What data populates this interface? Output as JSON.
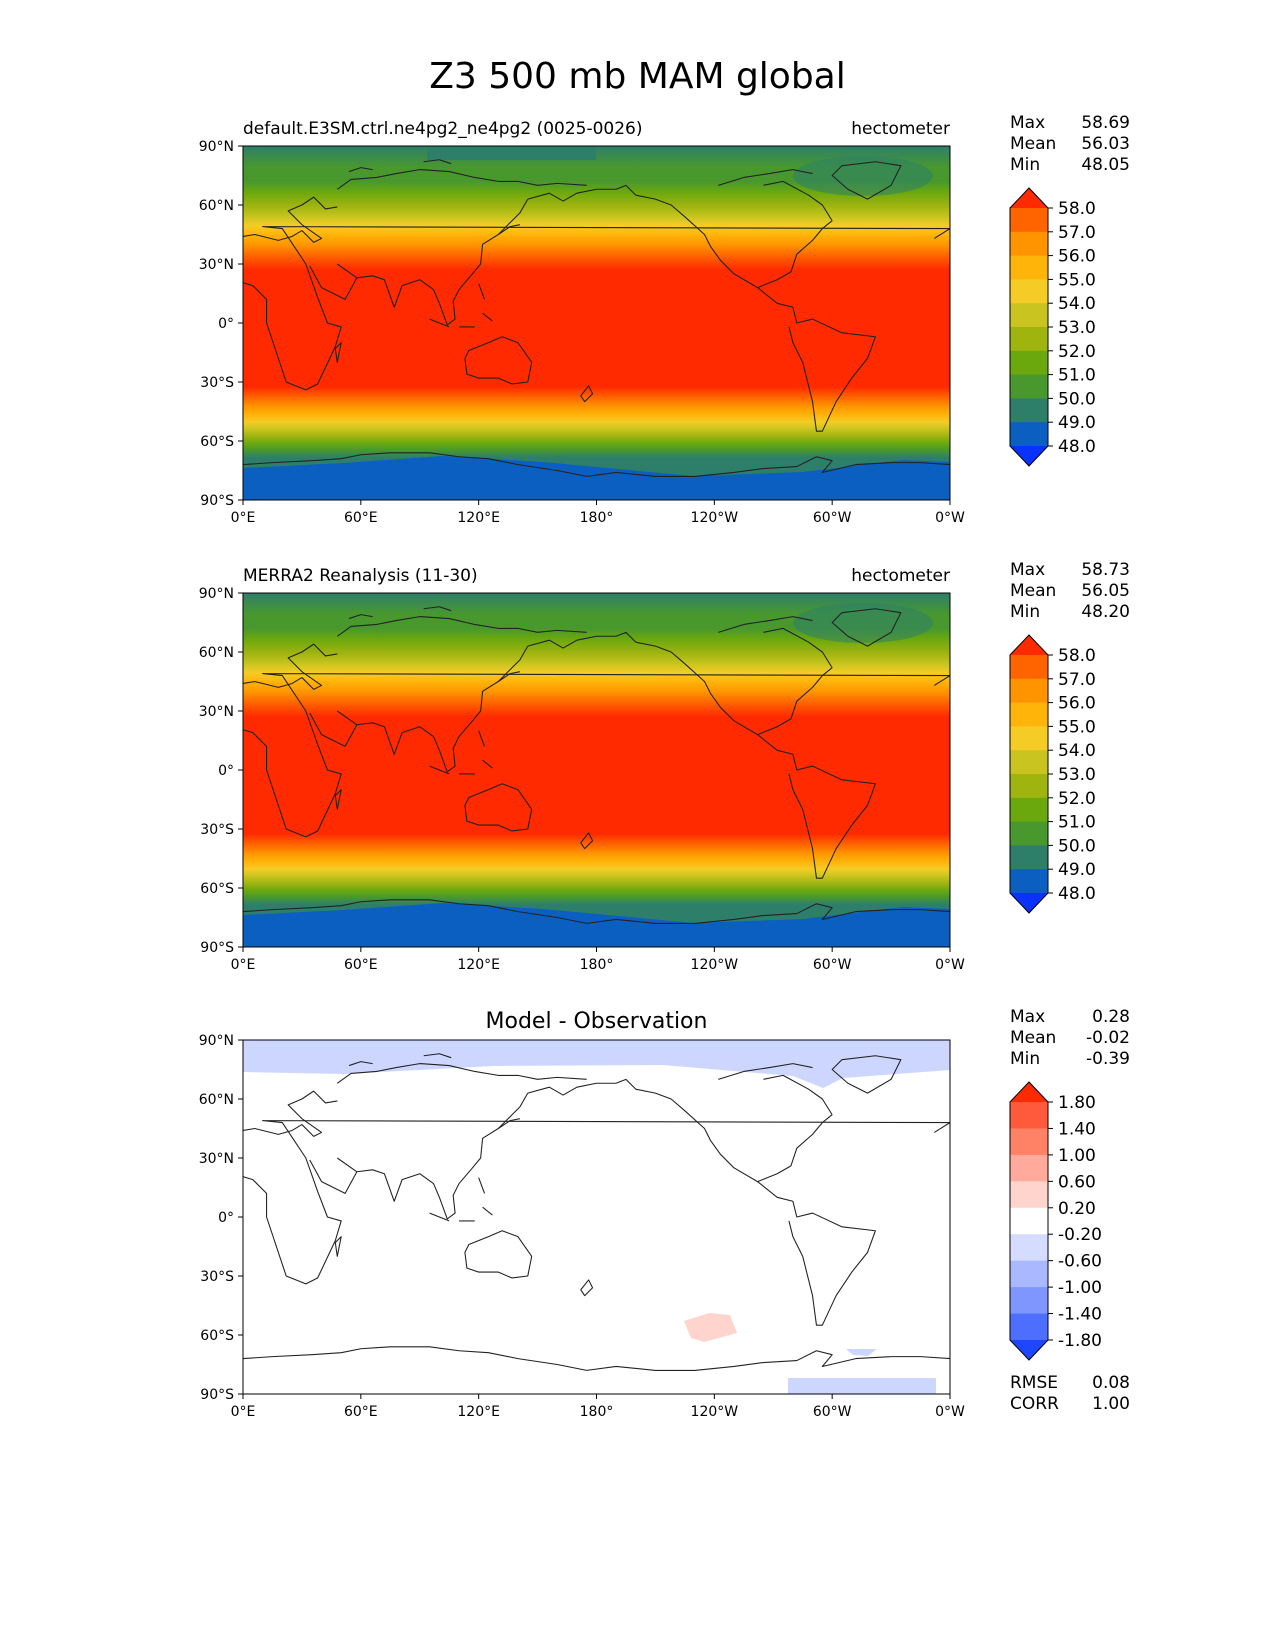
{
  "title": "Z3 500 mb MAM global",
  "axes": {
    "yticks": [
      "90°N",
      "60°N",
      "30°N",
      "0°",
      "30°S",
      "60°S",
      "90°S"
    ],
    "xticks": [
      "0°E",
      "60°E",
      "120°E",
      "180°",
      "120°W",
      "60°W",
      "0°W"
    ]
  },
  "panels": [
    {
      "id": "model",
      "left_title": "default.E3SM.ctrl.ne4pg2_ne4pg2 (0025-0026)",
      "right_title": "hectometer",
      "center_title": "",
      "stats": [
        {
          "label": "Max",
          "value": "58.69"
        },
        {
          "label": "Mean",
          "value": "56.03"
        },
        {
          "label": "Min",
          "value": "48.05"
        }
      ],
      "bottom_stats": [],
      "colorbar": {
        "ticks": [
          "58.0",
          "57.0",
          "56.0",
          "55.0",
          "54.0",
          "53.0",
          "52.0",
          "51.0",
          "50.0",
          "49.0",
          "48.0"
        ],
        "colors": [
          "#ff2a00",
          "#ff6400",
          "#ff9400",
          "#ffb40a",
          "#f5cc26",
          "#c9c41f",
          "#a0b410",
          "#6aa80e",
          "#48982e",
          "#2e7f6a",
          "#0b5fc0",
          "#0a32ff"
        ],
        "extend": "both"
      }
    },
    {
      "id": "obs",
      "left_title": "MERRA2 Reanalysis (11-30)",
      "right_title": "hectometer",
      "center_title": "",
      "stats": [
        {
          "label": "Max",
          "value": "58.73"
        },
        {
          "label": "Mean",
          "value": "56.05"
        },
        {
          "label": "Min",
          "value": "48.20"
        }
      ],
      "bottom_stats": [],
      "colorbar": {
        "ticks": [
          "58.0",
          "57.0",
          "56.0",
          "55.0",
          "54.0",
          "53.0",
          "52.0",
          "51.0",
          "50.0",
          "49.0",
          "48.0"
        ],
        "colors": [
          "#ff2a00",
          "#ff6400",
          "#ff9400",
          "#ffb40a",
          "#f5cc26",
          "#c9c41f",
          "#a0b410",
          "#6aa80e",
          "#48982e",
          "#2e7f6a",
          "#0b5fc0",
          "#0a32ff"
        ],
        "extend": "both"
      }
    },
    {
      "id": "diff",
      "left_title": "",
      "right_title": "",
      "center_title": "Model - Observation",
      "stats": [
        {
          "label": "Max",
          "value": "0.28"
        },
        {
          "label": "Mean",
          "value": "-0.02"
        },
        {
          "label": "Min",
          "value": "-0.39"
        }
      ],
      "bottom_stats": [
        {
          "label": "RMSE",
          "value": "0.08"
        },
        {
          "label": "CORR",
          "value": "1.00"
        }
      ],
      "colorbar": {
        "ticks": [
          "1.80",
          "1.40",
          "1.00",
          "0.60",
          "0.20",
          "-0.20",
          "-0.60",
          "-1.00",
          "-1.40",
          "-1.80"
        ],
        "colors": [
          "#ff2a00",
          "#ff5a3c",
          "#ff8266",
          "#ffaa9a",
          "#ffd4cc",
          "#ffffff",
          "#d4dcff",
          "#aab8ff",
          "#8096ff",
          "#4e6eff",
          "#1f46ff"
        ],
        "extend": "both"
      }
    }
  ]
}
